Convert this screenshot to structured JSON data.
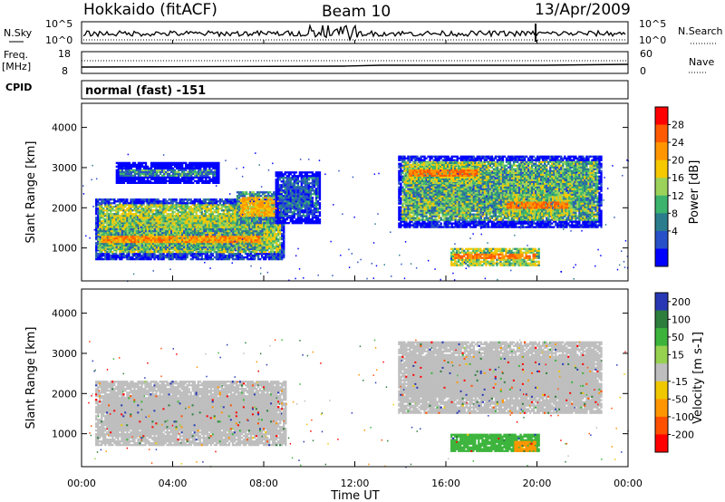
{
  "header": {
    "title": "Hokkaido (fitACF)",
    "beam": "Beam 10",
    "date": "13/Apr/2009"
  },
  "strip_labels": {
    "nsky": "N.Sky",
    "nsearch": "N.Search",
    "freq": "Freq.",
    "mhz": "[MHz]",
    "nave": "Nave",
    "cpid": "CPID",
    "mode": "normal (fast) -151",
    "nsky_ticks": [
      "10^5",
      "10^0"
    ],
    "nsearch_ticks": [
      "10^5",
      "10^0"
    ],
    "freq_ticks": [
      "18",
      "8"
    ],
    "nave_ticks": [
      "60",
      "0"
    ]
  },
  "chart_data": [
    {
      "type": "heatmap",
      "panel": "power",
      "ylabel": "Slant Range [km]",
      "yticks": [
        "4000",
        "3000",
        "2000",
        "1000"
      ],
      "ylim": [
        180,
        4600
      ],
      "xlim": [
        0,
        24
      ],
      "colorbar_label": "Power [dB]",
      "colorbar_ticks": [
        "28",
        "24",
        "20",
        "16",
        "12",
        "8",
        "4"
      ],
      "colorbar_colors": [
        "#ff0000",
        "#ff5a00",
        "#ff9600",
        "#f5c800",
        "#9bd35a",
        "#3cb46e",
        "#2a7d8c",
        "#2850c8",
        "#0000ff"
      ],
      "regions": [
        {
          "t0": 0.6,
          "t1": 8.9,
          "r0": 700,
          "r1": 2200,
          "level": 16
        },
        {
          "t0": 0.7,
          "t1": 8.0,
          "r0": 950,
          "r1": 1450,
          "level": 22
        },
        {
          "t0": 6.8,
          "t1": 8.8,
          "r0": 1600,
          "r1": 2400,
          "level": 20
        },
        {
          "t0": 1.5,
          "t1": 6.0,
          "r0": 2600,
          "r1": 3100,
          "level": 12
        },
        {
          "t0": 8.5,
          "t1": 10.5,
          "r0": 1600,
          "r1": 2900,
          "level": 10
        },
        {
          "t0": 13.9,
          "t1": 22.8,
          "r0": 1500,
          "r1": 3300,
          "level": 14
        },
        {
          "t0": 14.2,
          "t1": 17.5,
          "r0": 2600,
          "r1": 3100,
          "level": 24
        },
        {
          "t0": 18.5,
          "t1": 21.5,
          "r0": 1800,
          "r1": 2300,
          "level": 24
        },
        {
          "t0": 16.2,
          "t1": 20.1,
          "r0": 550,
          "r1": 1000,
          "level": 24
        }
      ]
    },
    {
      "type": "heatmap",
      "panel": "velocity",
      "ylabel": "Slant Range [km]",
      "yticks": [
        "4000",
        "3000",
        "2000",
        "1000"
      ],
      "ylim": [
        180,
        4600
      ],
      "xlim": [
        0,
        24
      ],
      "xticks": [
        "00:00",
        "04:00",
        "08:00",
        "12:00",
        "16:00",
        "20:00",
        "00:00"
      ],
      "xlabel": "Time UT",
      "colorbar_label": "Velocity [m s-1]",
      "colorbar_ticks": [
        "200",
        "100",
        "50",
        "15",
        "-15",
        "-50",
        "-100",
        "-200"
      ],
      "colorbar_colors": [
        "#2838b4",
        "#2d7d3c",
        "#3cb43c",
        "#96d250",
        "#bebebe",
        "#f0c800",
        "#ff9600",
        "#ff5000",
        "#ff0000"
      ],
      "regions": [
        {
          "t0": 0.6,
          "t1": 9.0,
          "r0": 700,
          "r1": 2300,
          "v": 0
        },
        {
          "t0": 13.9,
          "t1": 22.8,
          "r0": 1500,
          "r1": 3300,
          "v": 0
        },
        {
          "t0": 16.2,
          "t1": 20.1,
          "r0": 550,
          "r1": 1000,
          "v": 40
        },
        {
          "t0": 19.0,
          "t1": 19.9,
          "r0": 550,
          "r1": 800,
          "v": -60
        }
      ]
    }
  ],
  "colors": {
    "frame": "#000000",
    "background": "#ffffff"
  }
}
